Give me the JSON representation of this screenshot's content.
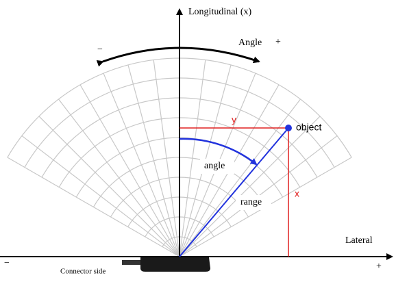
{
  "labels": {
    "longitudinal": "Longitudinal (x)",
    "angle_title": "Angle",
    "angle_plus": "+",
    "angle_minus": "−",
    "y": "y",
    "object": "object",
    "angle": "angle",
    "range": "range",
    "x": "x",
    "lateral": "Lateral",
    "lateral_minus": "−",
    "lateral_plus": "+",
    "connector": "Connector side"
  }
}
